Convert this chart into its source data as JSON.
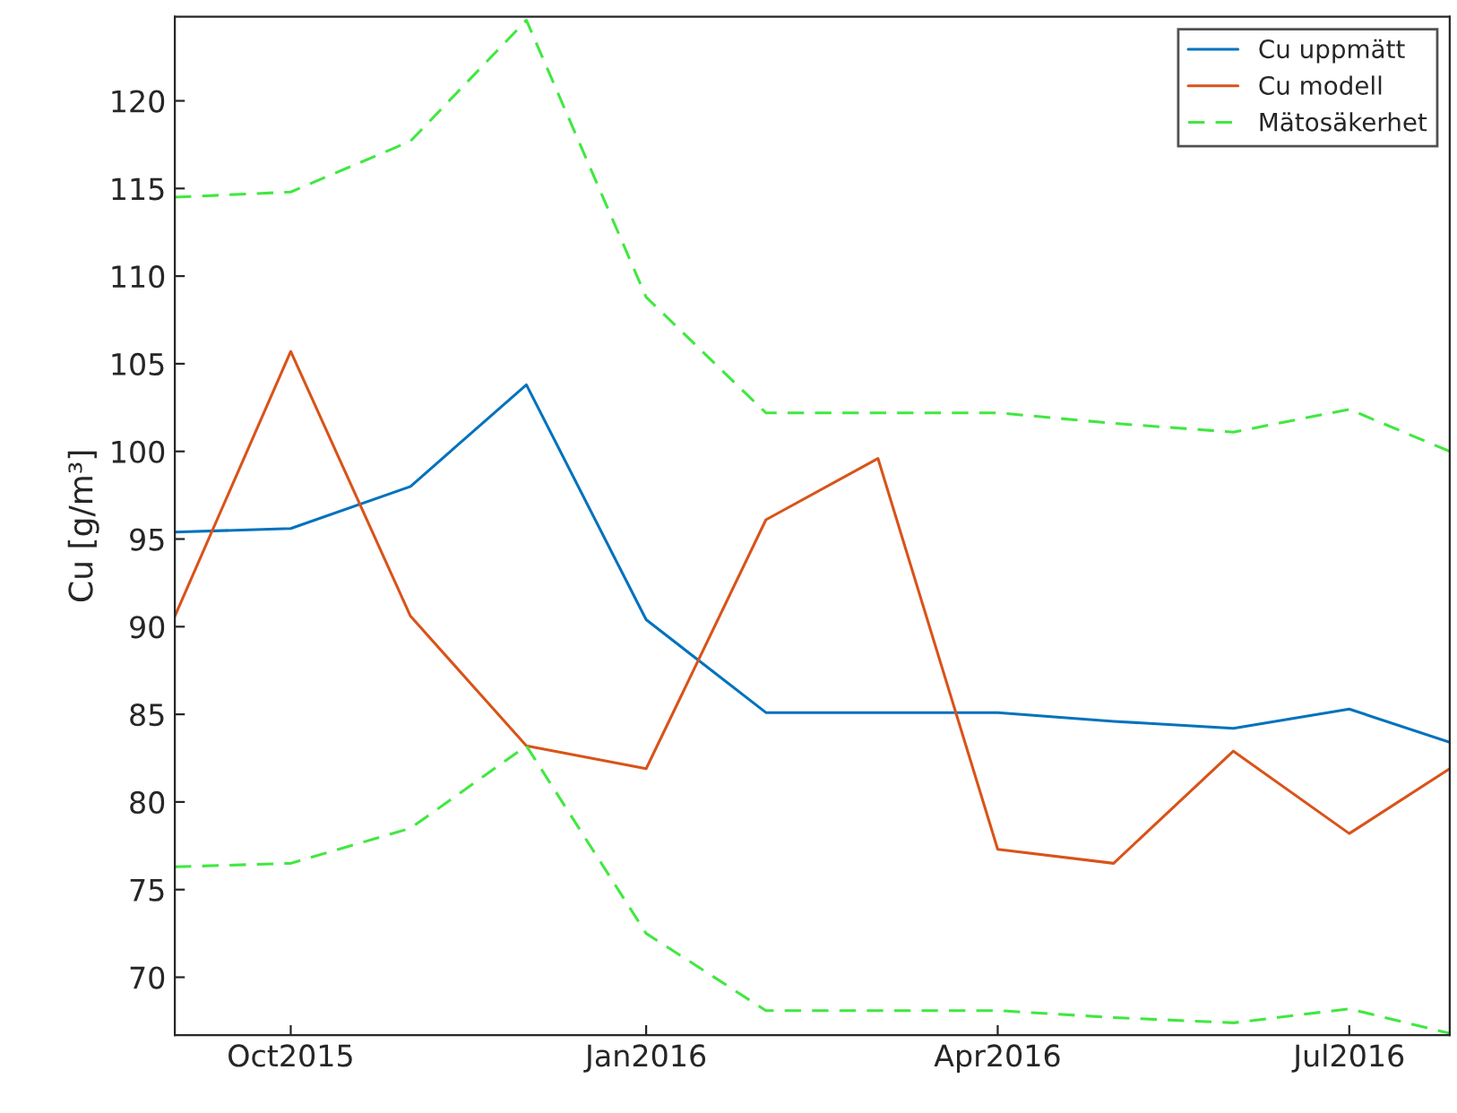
{
  "chart_data": {
    "type": "line",
    "ylabel": "Cu [g/m³]",
    "x": [
      "2015-09-01",
      "2015-10-01",
      "2015-11-01",
      "2015-12-01",
      "2016-01-01",
      "2016-02-01",
      "2016-03-01",
      "2016-04-01",
      "2016-05-01",
      "2016-06-01",
      "2016-07-01",
      "2016-07-27"
    ],
    "series": [
      {
        "name": "Cu uppmätt",
        "color": "#0072bd",
        "line_style": "solid",
        "values": [
          95.4,
          95.6,
          98.0,
          103.8,
          90.4,
          85.1,
          85.1,
          85.1,
          84.6,
          84.2,
          85.3,
          83.4
        ]
      },
      {
        "name": "Cu modell",
        "color": "#d95319",
        "line_style": "solid",
        "values": [
          90.6,
          105.7,
          90.6,
          83.2,
          81.9,
          96.1,
          99.6,
          77.3,
          76.5,
          82.9,
          78.2,
          81.9
        ]
      },
      {
        "name": "Mätosäkerhet",
        "color": "#40e840",
        "line_style": "dashed",
        "values": [
          114.5,
          114.8,
          117.7,
          124.6,
          108.8,
          102.2,
          102.2,
          102.2,
          101.6,
          101.1,
          102.4,
          100.0
        ]
      },
      {
        "color": "#40e840",
        "line_style": "dashed",
        "values": [
          76.3,
          76.5,
          78.5,
          83.2,
          72.5,
          68.1,
          68.1,
          68.1,
          67.7,
          67.4,
          68.2,
          66.8
        ]
      }
    ],
    "xlim": [
      "2015-09-01",
      "2016-07-27"
    ],
    "xticks": [
      {
        "value": "2015-10-01",
        "label": "Oct2015"
      },
      {
        "value": "2016-01-01",
        "label": "Jan2016"
      },
      {
        "value": "2016-04-01",
        "label": "Apr2016"
      },
      {
        "value": "2016-07-01",
        "label": "Jul2016"
      }
    ],
    "ylim": [
      66.7,
      124.8
    ],
    "yticks": [
      70,
      75,
      80,
      85,
      90,
      95,
      100,
      105,
      110,
      115,
      120
    ],
    "grid": false,
    "legend": "top right",
    "marker": "none"
  }
}
